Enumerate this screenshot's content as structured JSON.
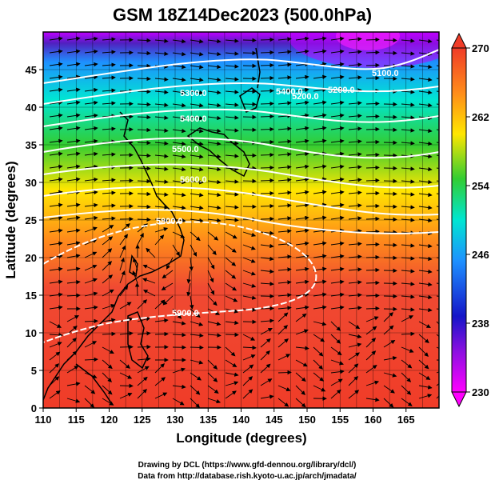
{
  "title": "GSM 18Z14Dec2023 (500.0hPa)",
  "axes": {
    "xlabel": "Longitude (degrees)",
    "ylabel": "Latitude (degrees)",
    "x_ticks": [
      "110",
      "115",
      "120",
      "125",
      "130",
      "135",
      "140",
      "145",
      "150",
      "155",
      "160",
      "165"
    ],
    "y_ticks": [
      "0",
      "5",
      "10",
      "15",
      "20",
      "25",
      "30",
      "35",
      "40",
      "45"
    ],
    "xlim": [
      110,
      170
    ],
    "ylim": [
      0,
      50
    ]
  },
  "colorbar": {
    "labels": [
      "230",
      "238",
      "246",
      "254",
      "262",
      "270"
    ],
    "range": [
      230,
      270
    ],
    "colors": [
      "#ff00ff",
      "#1515c8",
      "#1e90ff",
      "#00e6d2",
      "#32cd32",
      "#ffe600",
      "#ff8c1a",
      "#f03c28"
    ]
  },
  "contour_labels": [
    "5100.0",
    "5200.0",
    "5200.0",
    "5300.0",
    "5400.0",
    "5400.0",
    "5500.0",
    "5600.0",
    "5800.0",
    "5900.0"
  ],
  "chart_data": {
    "type": "heatmap",
    "title": "GSM 18Z14Dec2023 (500.0hPa)",
    "xlabel": "Longitude (degrees)",
    "ylabel": "Latitude (degrees)",
    "xlim": [
      110,
      170
    ],
    "ylim": [
      0,
      50
    ],
    "color_range": [
      230,
      270
    ],
    "grid": true
  },
  "credits": {
    "line1": "Drawing by DCL (https://www.gfd-dennou.org/library/dcl/)",
    "line2": "Data from http://database.rish.kyoto-u.ac.jp/arch/jmadata/"
  }
}
